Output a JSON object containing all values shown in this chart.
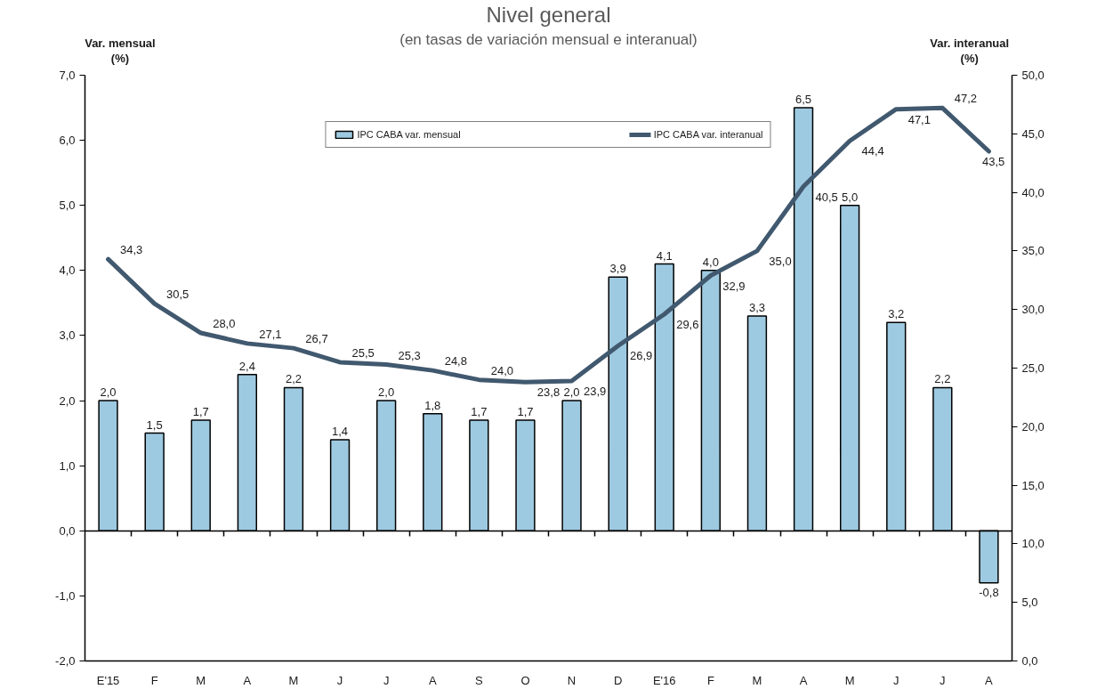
{
  "chart_data": {
    "type": "bar",
    "title": "Nivel general",
    "subtitle": "(en tasas de variación mensual e interanual)",
    "ylabel": "Var. mensual\n(%)",
    "y2label": "Var. interanual\n(%)",
    "categories": [
      "E'15",
      "F",
      "M",
      "A",
      "M",
      "J",
      "J",
      "A",
      "S",
      "O",
      "N",
      "D",
      "E'16",
      "F",
      "M",
      "A",
      "M",
      "J",
      "J",
      "A"
    ],
    "series": [
      {
        "name": "IPC CABA var. mensual",
        "color": "#9ecae1",
        "values": [
          2.0,
          1.5,
          1.7,
          2.4,
          2.2,
          1.4,
          2.0,
          1.8,
          1.7,
          1.7,
          2.0,
          3.9,
          4.1,
          4.0,
          3.3,
          6.5,
          5.0,
          3.2,
          2.2,
          -0.8
        ],
        "value_labels": [
          "2,0",
          "1,5",
          "1,7",
          "2,4",
          "2,2",
          "1,4",
          "2,0",
          "1,8",
          "1,7",
          "1,7",
          "2,0",
          "3,9",
          "4,1",
          "4,0",
          "3,3",
          "6,5",
          "5,0",
          "3,2",
          "2,2",
          "-0,8"
        ]
      },
      {
        "name": "IPC CABA var. interanual",
        "type": "line",
        "axis": "y2",
        "color": "#41596f",
        "values": [
          34.3,
          30.5,
          28.0,
          27.1,
          26.7,
          25.5,
          25.3,
          24.8,
          24.0,
          23.8,
          23.9,
          26.9,
          29.6,
          32.9,
          35.0,
          40.5,
          44.4,
          47.1,
          47.2,
          43.5
        ],
        "value_labels": [
          "34,3",
          "30,5",
          "28,0",
          "27,1",
          "26,7",
          "25,5",
          "25,3",
          "24,8",
          "24,0",
          "23,8",
          "23,9",
          "26,9",
          "29,6",
          "32,9",
          "35,0",
          "40,5",
          "44,4",
          "47,1",
          "47,2",
          "43,5"
        ]
      }
    ],
    "ylim": [
      -2,
      7
    ],
    "yticks": [
      {
        "value": -2,
        "label": "-2,0"
      },
      {
        "value": -1,
        "label": "-1,0"
      },
      {
        "value": 0,
        "label": "0,0"
      },
      {
        "value": 1,
        "label": "1,0"
      },
      {
        "value": 2,
        "label": "2,0"
      },
      {
        "value": 3,
        "label": "3,0"
      },
      {
        "value": 4,
        "label": "4,0"
      },
      {
        "value": 5,
        "label": "5,0"
      },
      {
        "value": 6,
        "label": "6,0"
      },
      {
        "value": 7,
        "label": "7,0"
      }
    ],
    "y2lim": [
      0,
      50
    ],
    "y2ticks": [
      {
        "value": 0,
        "label": "0,0"
      },
      {
        "value": 5,
        "label": "5,0"
      },
      {
        "value": 10,
        "label": "10,0"
      },
      {
        "value": 15,
        "label": "15,0"
      },
      {
        "value": 20,
        "label": "20,0"
      },
      {
        "value": 25,
        "label": "25,0"
      },
      {
        "value": 30,
        "label": "30,0"
      },
      {
        "value": 35,
        "label": "35,0"
      },
      {
        "value": 40,
        "label": "40,0"
      },
      {
        "value": 45,
        "label": "45,0"
      },
      {
        "value": 50,
        "label": "50,0"
      }
    ],
    "ref_lines": [
      {
        "axis": "y",
        "value": 0,
        "color": "#000000"
      }
    ],
    "grid": false,
    "legend": "top"
  }
}
